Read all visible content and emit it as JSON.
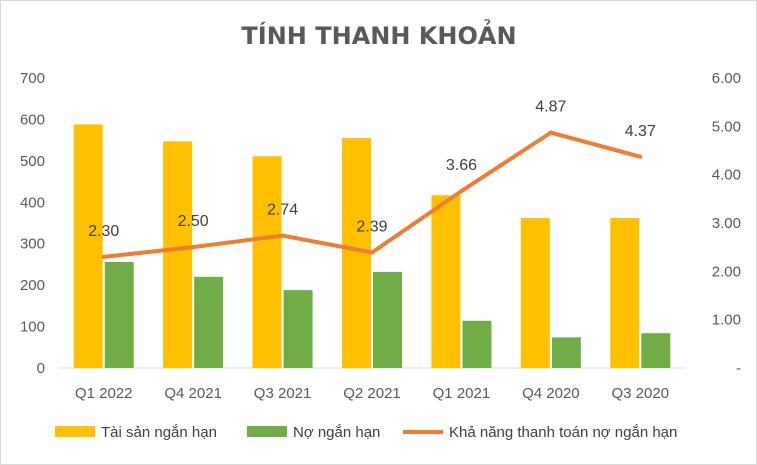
{
  "chart_data": {
    "type": "bar",
    "title": "TÍNH THANH KHOẢN",
    "categories": [
      "Q1 2022",
      "Q4 2021",
      "Q3 2021",
      "Q2 2021",
      "Q1 2021",
      "Q4 2020",
      "Q3 2020"
    ],
    "series": [
      {
        "name": "Tài sản ngắn hạn",
        "type": "bar",
        "axis": "left",
        "color": "#FFC000",
        "values": [
          588,
          547,
          511,
          555,
          417,
          362,
          362
        ]
      },
      {
        "name": "Nợ ngắn hạn",
        "type": "bar",
        "axis": "left",
        "color": "#70AD47",
        "values": [
          256,
          220,
          188,
          232,
          114,
          74,
          84
        ]
      },
      {
        "name": "Khả năng thanh toán nợ ngắn hạn",
        "type": "line",
        "axis": "right",
        "color": "#ED7D31",
        "values": [
          2.3,
          2.5,
          2.74,
          2.39,
          3.66,
          4.87,
          4.37
        ],
        "labels": [
          "2.30",
          "2.50",
          "2.74",
          "2.39",
          "3.66",
          "4.87",
          "4.37"
        ]
      }
    ],
    "y_left": {
      "min": 0,
      "max": 700,
      "ticks": [
        "0",
        "100",
        "200",
        "300",
        "400",
        "500",
        "600",
        "700"
      ]
    },
    "y_right": {
      "min": 0,
      "max": 6,
      "ticks": [
        "-",
        "1.00",
        "2.00",
        "3.00",
        "4.00",
        "5.00",
        "6.00"
      ]
    },
    "grid": false,
    "legend": "bottom"
  }
}
